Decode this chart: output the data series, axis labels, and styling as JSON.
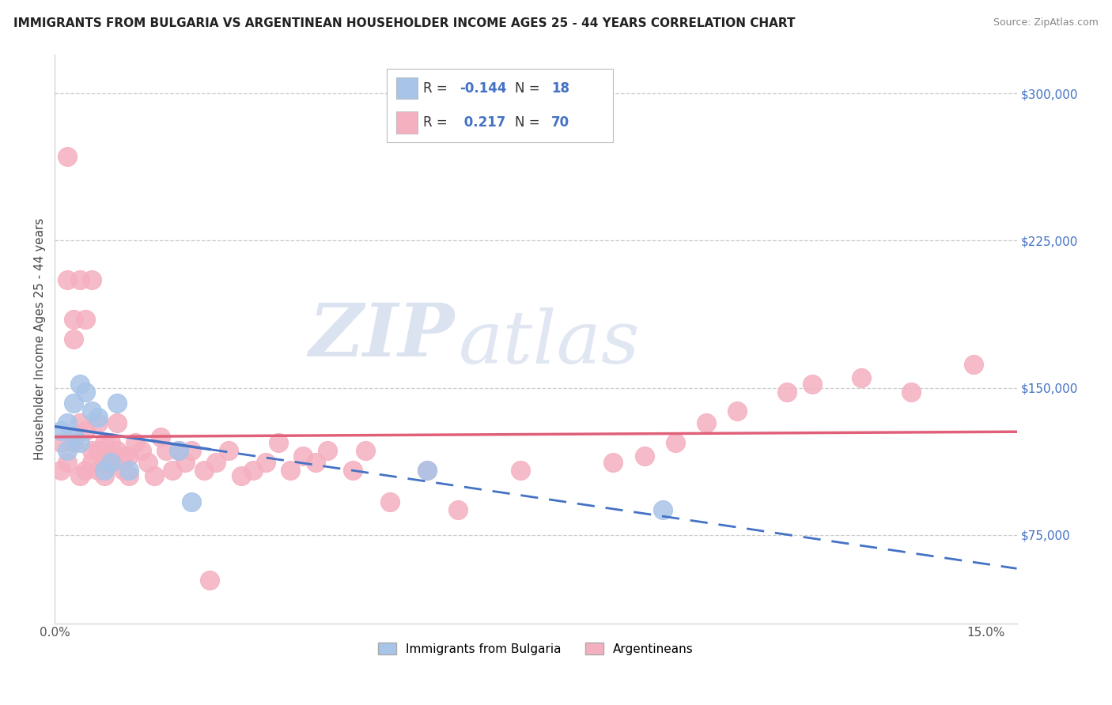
{
  "title": "IMMIGRANTS FROM BULGARIA VS ARGENTINEAN HOUSEHOLDER INCOME AGES 25 - 44 YEARS CORRELATION CHART",
  "source": "Source: ZipAtlas.com",
  "ylabel": "Householder Income Ages 25 - 44 years",
  "xlim": [
    0.0,
    0.155
  ],
  "ylim": [
    30000,
    320000
  ],
  "yticks": [
    75000,
    150000,
    225000,
    300000
  ],
  "ytick_labels": [
    "$75,000",
    "$150,000",
    "$225,000",
    "$300,000"
  ],
  "xticks": [
    0.0,
    0.15
  ],
  "xtick_labels": [
    "0.0%",
    "15.0%"
  ],
  "watermark_zip": "ZIP",
  "watermark_atlas": "atlas",
  "bulgaria_color": "#a8c4e8",
  "argentina_color": "#f5b0c0",
  "bulgaria_line_color": "#4472c4",
  "argentina_line_color": "#e0607a",
  "legend_bulgaria_label": "Immigrants from Bulgaria",
  "legend_argentina_label": "Argentineans",
  "R_bulgaria": -0.144,
  "N_bulgaria": 18,
  "R_argentina": 0.217,
  "N_argentina": 70,
  "bulgaria_scatter_x": [
    0.001,
    0.002,
    0.002,
    0.003,
    0.003,
    0.004,
    0.004,
    0.005,
    0.006,
    0.007,
    0.008,
    0.009,
    0.01,
    0.012,
    0.02,
    0.022,
    0.06,
    0.098
  ],
  "bulgaria_scatter_y": [
    128000,
    132000,
    118000,
    142000,
    125000,
    152000,
    122000,
    148000,
    138000,
    135000,
    108000,
    112000,
    142000,
    108000,
    118000,
    92000,
    108000,
    88000
  ],
  "argentina_scatter_x": [
    0.001,
    0.001,
    0.002,
    0.002,
    0.002,
    0.003,
    0.003,
    0.003,
    0.004,
    0.004,
    0.004,
    0.005,
    0.005,
    0.005,
    0.006,
    0.006,
    0.006,
    0.007,
    0.007,
    0.007,
    0.008,
    0.008,
    0.008,
    0.009,
    0.009,
    0.009,
    0.01,
    0.01,
    0.011,
    0.011,
    0.012,
    0.012,
    0.013,
    0.014,
    0.015,
    0.016,
    0.017,
    0.018,
    0.019,
    0.02,
    0.021,
    0.022,
    0.024,
    0.025,
    0.026,
    0.028,
    0.03,
    0.032,
    0.034,
    0.036,
    0.038,
    0.04,
    0.042,
    0.044,
    0.048,
    0.05,
    0.054,
    0.06,
    0.065,
    0.075,
    0.09,
    0.095,
    0.1,
    0.105,
    0.11,
    0.118,
    0.122,
    0.13,
    0.138,
    0.148
  ],
  "argentina_scatter_y": [
    122000,
    108000,
    268000,
    205000,
    112000,
    185000,
    122000,
    175000,
    105000,
    132000,
    205000,
    185000,
    128000,
    108000,
    118000,
    205000,
    112000,
    118000,
    132000,
    108000,
    112000,
    122000,
    105000,
    115000,
    122000,
    112000,
    132000,
    118000,
    115000,
    108000,
    105000,
    115000,
    122000,
    118000,
    112000,
    105000,
    125000,
    118000,
    108000,
    118000,
    112000,
    118000,
    108000,
    52000,
    112000,
    118000,
    105000,
    108000,
    112000,
    122000,
    108000,
    115000,
    112000,
    118000,
    108000,
    118000,
    92000,
    108000,
    88000,
    108000,
    112000,
    115000,
    122000,
    132000,
    138000,
    148000,
    152000,
    155000,
    148000,
    162000
  ]
}
